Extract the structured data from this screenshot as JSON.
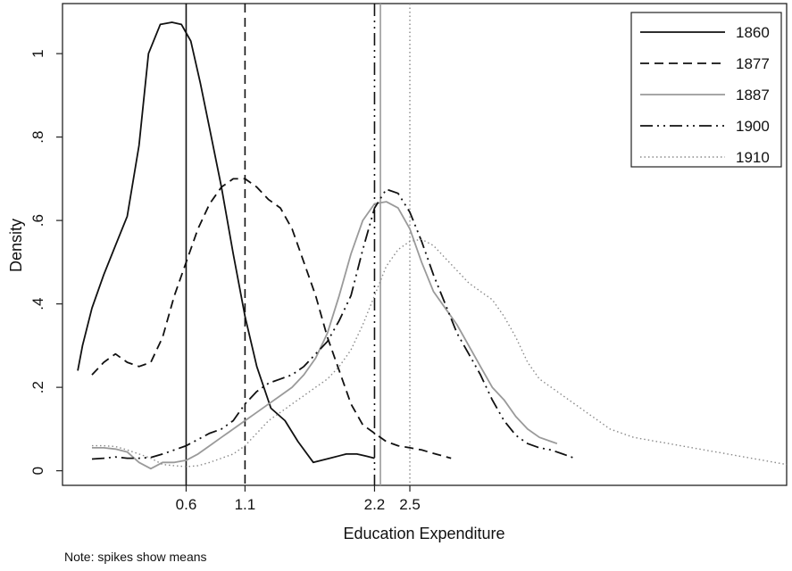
{
  "chart_data": {
    "type": "line",
    "title": "",
    "xlabel": "Education Expenditure",
    "ylabel": "Density",
    "note": "Note: spikes show means",
    "xlim": [
      -0.45,
      5.7
    ],
    "ylim": [
      -0.035,
      1.12
    ],
    "xticks": [
      {
        "value": 0.6,
        "label": "0.6"
      },
      {
        "value": 1.1,
        "label": "1.1"
      },
      {
        "value": 2.2,
        "label": "2.2"
      },
      {
        "value": 2.5,
        "label": "2.5"
      }
    ],
    "yticks": [
      {
        "value": 0,
        "label": "0"
      },
      {
        "value": 0.2,
        "label": ".2"
      },
      {
        "value": 0.4,
        "label": ".4"
      },
      {
        "value": 0.6,
        "label": ".6"
      },
      {
        "value": 0.8,
        "label": ".8"
      },
      {
        "value": 1,
        "label": "1"
      }
    ],
    "grid": false,
    "legend_position": "top-right",
    "series": [
      {
        "name": "1860",
        "color": "#111111",
        "dash": "solid",
        "mean": 0.6,
        "x": [
          -0.32,
          -0.28,
          -0.2,
          -0.1,
          0.0,
          0.1,
          0.2,
          0.28,
          0.38,
          0.48,
          0.56,
          0.64,
          0.72,
          0.8,
          0.9,
          1.0,
          1.1,
          1.2,
          1.32,
          1.44,
          1.55,
          1.68,
          1.82,
          1.96,
          2.05,
          2.13,
          2.2
        ],
        "y": [
          0.24,
          0.3,
          0.39,
          0.47,
          0.54,
          0.61,
          0.78,
          1.0,
          1.07,
          1.075,
          1.07,
          1.03,
          0.93,
          0.82,
          0.68,
          0.52,
          0.37,
          0.25,
          0.15,
          0.12,
          0.07,
          0.02,
          0.03,
          0.04,
          0.04,
          0.035,
          0.03
        ]
      },
      {
        "name": "1877",
        "color": "#111111",
        "dash": "dashed",
        "mean": 1.1,
        "x": [
          -0.2,
          -0.1,
          0.0,
          0.1,
          0.2,
          0.3,
          0.4,
          0.5,
          0.6,
          0.7,
          0.8,
          0.9,
          1.0,
          1.1,
          1.2,
          1.3,
          1.4,
          1.5,
          1.6,
          1.7,
          1.8,
          1.9,
          2.0,
          2.1,
          2.2,
          2.3,
          2.4,
          2.5,
          2.6,
          2.72,
          2.85
        ],
        "y": [
          0.23,
          0.26,
          0.28,
          0.26,
          0.25,
          0.26,
          0.32,
          0.42,
          0.5,
          0.58,
          0.64,
          0.68,
          0.7,
          0.7,
          0.68,
          0.65,
          0.63,
          0.58,
          0.5,
          0.42,
          0.32,
          0.24,
          0.16,
          0.11,
          0.09,
          0.07,
          0.06,
          0.055,
          0.05,
          0.04,
          0.03
        ]
      },
      {
        "name": "1887",
        "color": "#9a9a9a",
        "dash": "solid",
        "mean": 2.25,
        "x": [
          -0.2,
          -0.1,
          0.0,
          0.1,
          0.2,
          0.3,
          0.4,
          0.5,
          0.6,
          0.7,
          0.8,
          0.9,
          1.0,
          1.1,
          1.2,
          1.3,
          1.4,
          1.5,
          1.6,
          1.7,
          1.8,
          1.9,
          2.0,
          2.1,
          2.2,
          2.3,
          2.4,
          2.5,
          2.6,
          2.7,
          2.8,
          2.9,
          3.0,
          3.1,
          3.2,
          3.3,
          3.4,
          3.5,
          3.6,
          3.7,
          3.75
        ],
        "y": [
          0.055,
          0.055,
          0.052,
          0.045,
          0.02,
          0.005,
          0.02,
          0.02,
          0.025,
          0.04,
          0.06,
          0.08,
          0.1,
          0.12,
          0.14,
          0.16,
          0.18,
          0.2,
          0.23,
          0.27,
          0.33,
          0.42,
          0.52,
          0.6,
          0.64,
          0.645,
          0.63,
          0.58,
          0.5,
          0.43,
          0.39,
          0.35,
          0.3,
          0.25,
          0.2,
          0.17,
          0.13,
          0.1,
          0.08,
          0.07,
          0.065
        ]
      },
      {
        "name": "1900",
        "color": "#111111",
        "dash": "dashdotdot",
        "mean": 2.2,
        "x": [
          -0.2,
          -0.1,
          0.0,
          0.1,
          0.2,
          0.3,
          0.4,
          0.5,
          0.6,
          0.7,
          0.8,
          0.9,
          1.0,
          1.1,
          1.2,
          1.3,
          1.4,
          1.5,
          1.6,
          1.7,
          1.8,
          1.9,
          2.0,
          2.1,
          2.2,
          2.3,
          2.4,
          2.5,
          2.6,
          2.7,
          2.8,
          2.9,
          3.0,
          3.1,
          3.2,
          3.3,
          3.4,
          3.5,
          3.6,
          3.7,
          3.8,
          3.9
        ],
        "y": [
          0.028,
          0.03,
          0.033,
          0.03,
          0.03,
          0.032,
          0.04,
          0.05,
          0.06,
          0.075,
          0.09,
          0.1,
          0.12,
          0.16,
          0.19,
          0.21,
          0.22,
          0.23,
          0.25,
          0.28,
          0.31,
          0.36,
          0.42,
          0.53,
          0.63,
          0.675,
          0.665,
          0.62,
          0.55,
          0.47,
          0.4,
          0.33,
          0.28,
          0.23,
          0.17,
          0.12,
          0.085,
          0.065,
          0.055,
          0.05,
          0.04,
          0.03
        ]
      },
      {
        "name": "1910",
        "color": "#8a8a8a",
        "dash": "dotted",
        "mean": 2.5,
        "x": [
          -0.2,
          -0.1,
          0.0,
          0.1,
          0.2,
          0.3,
          0.4,
          0.5,
          0.6,
          0.7,
          0.8,
          0.9,
          1.0,
          1.1,
          1.2,
          1.3,
          1.4,
          1.5,
          1.6,
          1.7,
          1.8,
          1.9,
          2.0,
          2.1,
          2.2,
          2.3,
          2.4,
          2.5,
          2.6,
          2.7,
          2.8,
          2.9,
          3.0,
          3.1,
          3.2,
          3.3,
          3.4,
          3.5,
          3.6,
          3.7,
          3.8,
          3.9,
          4.0,
          4.1,
          4.2,
          4.3,
          4.4,
          4.5,
          4.6,
          4.7,
          4.8,
          4.9,
          5.0,
          5.1,
          5.2,
          5.3,
          5.4,
          5.5,
          5.6,
          5.7
        ],
        "y": [
          0.06,
          0.06,
          0.058,
          0.05,
          0.04,
          0.03,
          0.015,
          0.012,
          0.01,
          0.012,
          0.02,
          0.03,
          0.04,
          0.06,
          0.09,
          0.12,
          0.14,
          0.16,
          0.18,
          0.2,
          0.22,
          0.25,
          0.29,
          0.35,
          0.42,
          0.49,
          0.53,
          0.55,
          0.555,
          0.54,
          0.51,
          0.48,
          0.45,
          0.43,
          0.41,
          0.37,
          0.32,
          0.26,
          0.22,
          0.2,
          0.18,
          0.16,
          0.14,
          0.12,
          0.1,
          0.09,
          0.08,
          0.075,
          0.07,
          0.065,
          0.06,
          0.055,
          0.05,
          0.045,
          0.04,
          0.035,
          0.03,
          0.025,
          0.02,
          0.015
        ]
      }
    ]
  }
}
